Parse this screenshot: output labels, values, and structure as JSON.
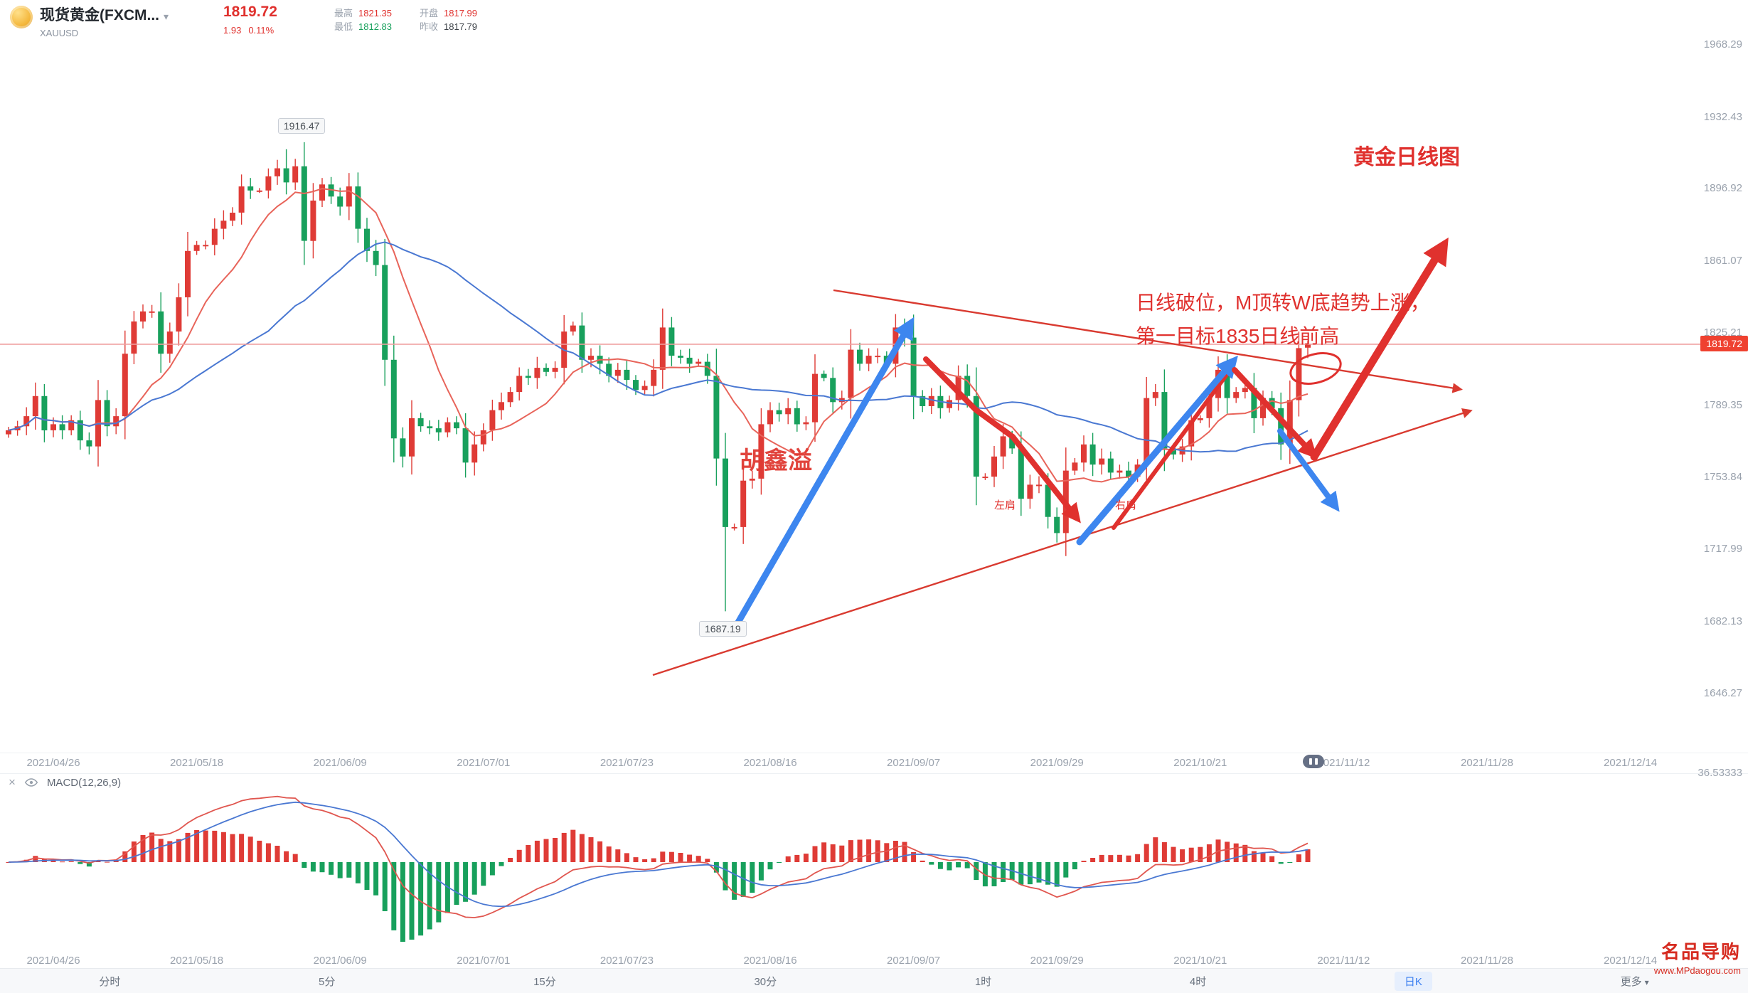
{
  "header": {
    "symbol_title": "现货黄金(FXCM...",
    "caret": "▾",
    "symbol_code": "XAUUSD",
    "last_price": "1819.72",
    "change": "1.93",
    "change_pct": "0.11%",
    "stats": [
      {
        "label": "最高",
        "value": "1821.35"
      },
      {
        "label": "开盘",
        "value": "1817.99"
      },
      {
        "label": "最低",
        "value": "1812.83"
      },
      {
        "label": "昨收",
        "value": "1817.79"
      }
    ]
  },
  "annotations": {
    "chart_title": "黄金日线图",
    "note_line1": "日线破位，M顶转W底趋势上涨，",
    "note_line2": "第一目标1835日线前高",
    "watermark": "胡鑫溢",
    "left_shoulder": "左肩",
    "right_shoulder": "右肩",
    "high_tag": "1916.47",
    "low_tag": "1687.19",
    "price_tag": "1819.72"
  },
  "indicator": {
    "close": "×",
    "label": "MACD(12,26,9)",
    "axis_value": "36.53333"
  },
  "toolbar": {
    "items": [
      "分时",
      "5分",
      "15分",
      "30分",
      "1时",
      "4时",
      "日K",
      "更多"
    ],
    "active_index": 6,
    "more_caret": "▾"
  },
  "logo": {
    "name": "名品导购",
    "url": "www.MPdaogou.com"
  },
  "chart_data": {
    "type": "candlestick",
    "symbol": "XAUUSD",
    "timeframe": "1D",
    "start_date": "2021-04-19",
    "first_open": 1775,
    "closes": [
      1777,
      1779,
      1784,
      1794,
      1777,
      1780,
      1777,
      1782,
      1772,
      1769,
      1792,
      1779,
      1784,
      1815,
      1831,
      1836,
      1836,
      1815,
      1826,
      1843,
      1866,
      1869,
      1869,
      1877,
      1881,
      1885,
      1898,
      1896,
      1896,
      1903,
      1907,
      1900,
      1908,
      1871,
      1891,
      1899,
      1893,
      1888,
      1898,
      1877,
      1866,
      1859,
      1812,
      1773,
      1764,
      1783,
      1779,
      1778,
      1776,
      1781,
      1778,
      1761,
      1770,
      1777,
      1787,
      1791,
      1796,
      1804,
      1803,
      1808,
      1806,
      1808,
      1826,
      1829,
      1812,
      1814,
      1810,
      1804,
      1807,
      1802,
      1797,
      1799,
      1807,
      1828,
      1814,
      1813,
      1810,
      1811,
      1804,
      1763,
      1729,
      1729,
      1752,
      1753,
      1780,
      1787,
      1785,
      1788,
      1780,
      1781,
      1805,
      1803,
      1791,
      1793,
      1817,
      1810,
      1814,
      1814,
      1810,
      1828,
      1823,
      1794,
      1789,
      1794,
      1788,
      1792,
      1804,
      1794,
      1754,
      1754,
      1764,
      1774,
      1768,
      1743,
      1750,
      1750,
      1734,
      1726,
      1757,
      1761,
      1770,
      1760,
      1763,
      1756,
      1757,
      1754,
      1760,
      1793,
      1796,
      1768,
      1765,
      1769,
      1782,
      1783,
      1793,
      1807,
      1793,
      1796,
      1798,
      1783,
      1793,
      1788,
      1770,
      1792,
      1817.79,
      1819.72
    ],
    "overrides": {
      "31": {
        "high": 1916.47
      },
      "80": {
        "low": 1687.19
      },
      "145": {
        "open": 1817.99,
        "high": 1821.35,
        "low": 1812.83
      }
    },
    "current_price": 1819.72,
    "high_label": 1916.47,
    "low_label": 1687.19,
    "y_ticks": [
      1968.29,
      1932.43,
      1896.92,
      1861.07,
      1825.21,
      1789.35,
      1753.84,
      1717.99,
      1682.13,
      1646.27
    ],
    "x_ticks": {
      "labels": [
        "2021/04/26",
        "2021/05/18",
        "2021/06/09",
        "2021/07/01",
        "2021/07/23",
        "2021/08/16",
        "2021/09/07",
        "2021/09/29",
        "2021/10/21",
        "2021/11/12",
        "2021/11/28",
        "2021/12/14"
      ],
      "candle_indices": [
        5,
        21,
        37,
        53,
        69,
        85,
        101,
        117,
        133,
        149,
        165,
        181
      ]
    },
    "ma_fast_period": 10,
    "ma_slow_period": 30,
    "macd": {
      "fast": 12,
      "slow": 26,
      "signal": 9
    },
    "colors": {
      "up": "#df3b36",
      "down": "#18a05c",
      "ma_fast": "#e8645a",
      "ma_slow": "#4a78d2",
      "macd_dif": "#e0564f",
      "macd_dea": "#4a78d2",
      "trendline": "#d93a30",
      "arrow_red": "#e0312e",
      "arrow_blue": "#3d86ef",
      "price_line": "#ef9f9f",
      "current_tag_bg": "#ef4130"
    }
  }
}
